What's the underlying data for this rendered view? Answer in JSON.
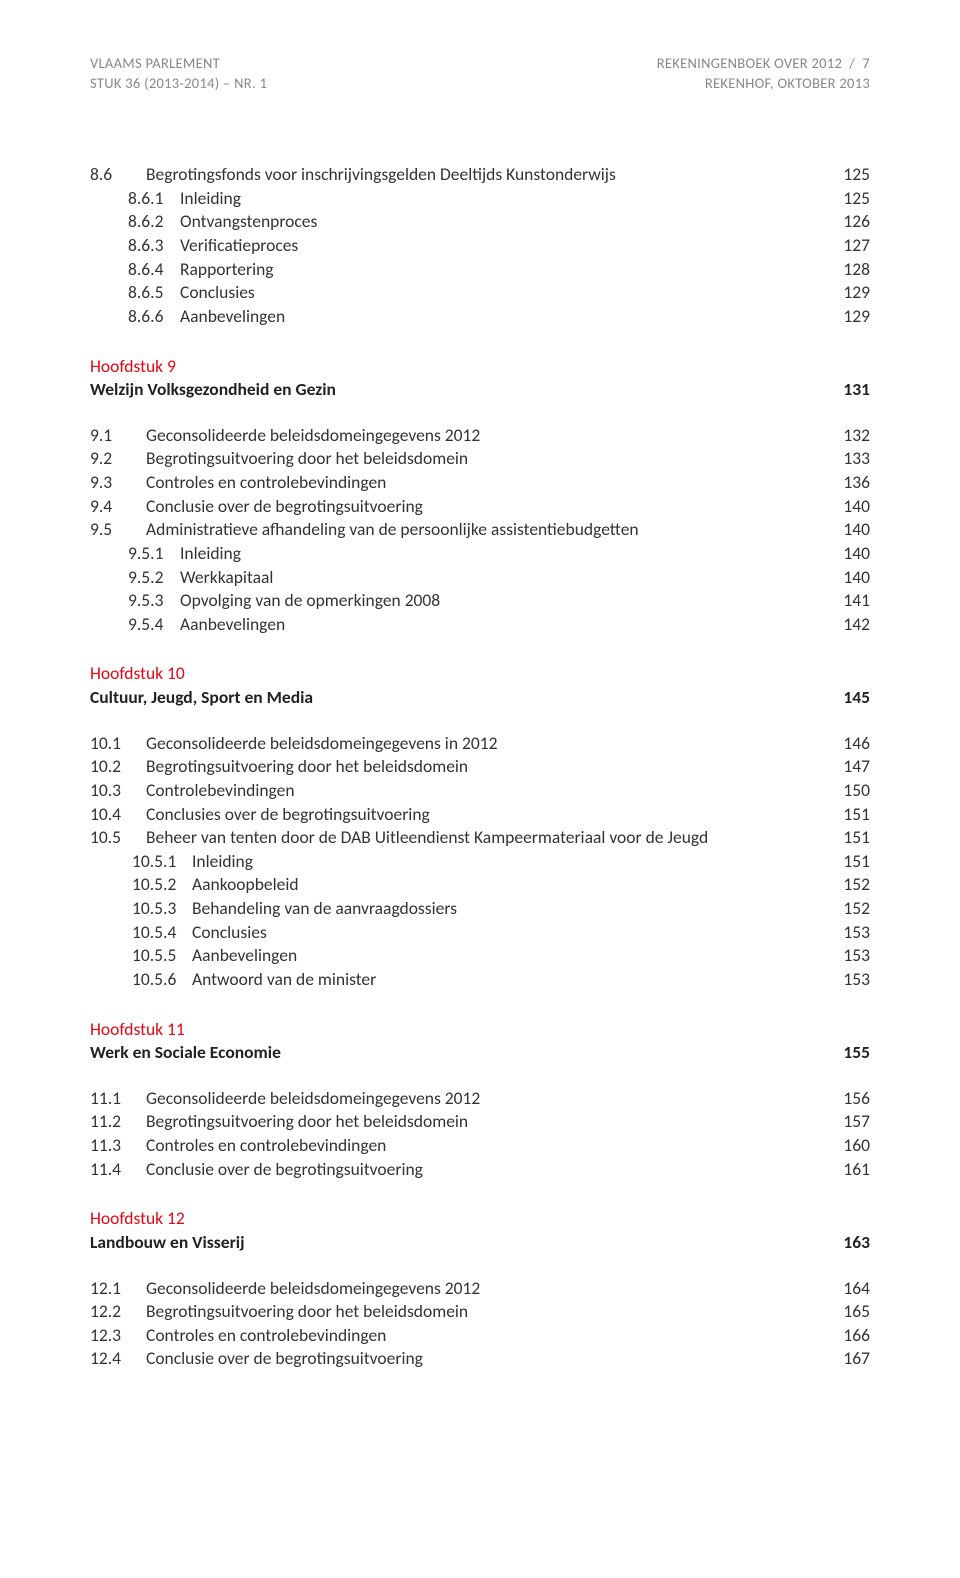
{
  "header": {
    "left_line1": "VLAAMS PARLEMENT",
    "left_line2": "STUK 36 (2013-2014) – NR. 1",
    "right_line1": "REKENINGENBOEK OVER 2012  /  7",
    "right_line2": "REKENHOF, OKTOBER 2013"
  },
  "colors": {
    "accent": "#e30613",
    "text": "#333333",
    "muted": "#888888"
  },
  "toc": [
    {
      "type": "item",
      "level": 0,
      "num": "8.6",
      "label": "Begrotingsfonds voor inschrijvingsgelden Deeltijds Kunstonderwijs",
      "page": "125"
    },
    {
      "type": "item",
      "level": 1,
      "num": "8.6.1",
      "label": "Inleiding",
      "page": "125"
    },
    {
      "type": "item",
      "level": 1,
      "num": "8.6.2",
      "label": "Ontvangstenproces",
      "page": "126"
    },
    {
      "type": "item",
      "level": 1,
      "num": "8.6.3",
      "label": "Verificatieproces",
      "page": "127"
    },
    {
      "type": "item",
      "level": 1,
      "num": "8.6.4",
      "label": "Rapportering",
      "page": "128"
    },
    {
      "type": "item",
      "level": 1,
      "num": "8.6.5",
      "label": "Conclusies",
      "page": "129"
    },
    {
      "type": "item",
      "level": 1,
      "num": "8.6.6",
      "label": "Aanbevelingen",
      "page": "129"
    },
    {
      "type": "chapter",
      "label": "Hoofdstuk 9"
    },
    {
      "type": "title",
      "label": "Welzijn Volksgezondheid en Gezin",
      "page": "131"
    },
    {
      "type": "gap"
    },
    {
      "type": "item",
      "level": 0,
      "num": "9.1",
      "label": "Geconsolideerde beleidsdomeingegevens 2012",
      "page": "132"
    },
    {
      "type": "item",
      "level": 0,
      "num": "9.2",
      "label": "Begrotingsuitvoering door het beleidsdomein",
      "page": "133"
    },
    {
      "type": "item",
      "level": 0,
      "num": "9.3",
      "label": "Controles en controlebevindingen",
      "page": "136"
    },
    {
      "type": "item",
      "level": 0,
      "num": "9.4",
      "label": "Conclusie over de begrotingsuitvoering",
      "page": "140"
    },
    {
      "type": "item",
      "level": 0,
      "num": "9.5",
      "label": "Administratieve afhandeling van de persoonlijke assistentiebudgetten",
      "page": "140"
    },
    {
      "type": "item",
      "level": 1,
      "num": "9.5.1",
      "label": "Inleiding",
      "page": "140"
    },
    {
      "type": "item",
      "level": 1,
      "num": "9.5.2",
      "label": "Werkkapitaal",
      "page": "140"
    },
    {
      "type": "item",
      "level": 1,
      "num": "9.5.3",
      "label": "Opvolging van de opmerkingen 2008",
      "page": "141"
    },
    {
      "type": "item",
      "level": 1,
      "num": "9.5.4",
      "label": "Aanbevelingen",
      "page": "142"
    },
    {
      "type": "chapter",
      "label": "Hoofdstuk 10"
    },
    {
      "type": "title",
      "label": "Cultuur, Jeugd, Sport en Media",
      "page": "145"
    },
    {
      "type": "gap"
    },
    {
      "type": "item",
      "level": 0,
      "num": "10.1",
      "label": "Geconsolideerde beleidsdomeingegevens in 2012",
      "page": "146"
    },
    {
      "type": "item",
      "level": 0,
      "num": "10.2",
      "label": "Begrotingsuitvoering door het beleidsdomein",
      "page": "147"
    },
    {
      "type": "item",
      "level": 0,
      "num": "10.3",
      "label": "Controlebevindingen",
      "page": "150"
    },
    {
      "type": "item",
      "level": 0,
      "num": "10.4",
      "label": "Conclusies over de begrotingsuitvoering",
      "page": "151"
    },
    {
      "type": "item",
      "level": 0,
      "num": "10.5",
      "label": "Beheer van tenten door de DAB Uitleendienst Kampeermateriaal voor de Jeugd",
      "page": "151"
    },
    {
      "type": "item",
      "level": 2,
      "num": "10.5.1",
      "label": "Inleiding",
      "page": "151"
    },
    {
      "type": "item",
      "level": 2,
      "num": "10.5.2",
      "label": "Aankoopbeleid",
      "page": "152"
    },
    {
      "type": "item",
      "level": 2,
      "num": "10.5.3",
      "label": "Behandeling van de aanvraagdossiers",
      "page": "152"
    },
    {
      "type": "item",
      "level": 2,
      "num": "10.5.4",
      "label": "Conclusies",
      "page": "153"
    },
    {
      "type": "item",
      "level": 2,
      "num": "10.5.5",
      "label": "Aanbevelingen",
      "page": "153"
    },
    {
      "type": "item",
      "level": 2,
      "num": "10.5.6",
      "label": "Antwoord van de minister",
      "page": "153"
    },
    {
      "type": "chapter",
      "label": "Hoofdstuk 11"
    },
    {
      "type": "title",
      "label": "Werk en Sociale Economie",
      "page": "155"
    },
    {
      "type": "gap"
    },
    {
      "type": "item",
      "level": 0,
      "num": "11.1",
      "label": "Geconsolideerde beleidsdomeingegevens 2012",
      "page": "156"
    },
    {
      "type": "item",
      "level": 0,
      "num": "11.2",
      "label": "Begrotingsuitvoering door het beleidsdomein",
      "page": "157"
    },
    {
      "type": "item",
      "level": 0,
      "num": "11.3",
      "label": "Controles en controlebevindingen",
      "page": "160"
    },
    {
      "type": "item",
      "level": 0,
      "num": "11.4",
      "label": "Conclusie over de begrotingsuitvoering",
      "page": "161"
    },
    {
      "type": "chapter",
      "label": "Hoofdstuk 12"
    },
    {
      "type": "title",
      "label": "Landbouw en Visserij",
      "page": "163"
    },
    {
      "type": "gap"
    },
    {
      "type": "item",
      "level": 0,
      "num": "12.1",
      "label": "Geconsolideerde beleidsdomeingegevens 2012",
      "page": "164"
    },
    {
      "type": "item",
      "level": 0,
      "num": "12.2",
      "label": "Begrotingsuitvoering door het beleidsdomein",
      "page": "165"
    },
    {
      "type": "item",
      "level": 0,
      "num": "12.3",
      "label": "Controles en controlebevindingen",
      "page": "166"
    },
    {
      "type": "item",
      "level": 0,
      "num": "12.4",
      "label": "Conclusie over de begrotingsuitvoering",
      "page": "167"
    }
  ]
}
